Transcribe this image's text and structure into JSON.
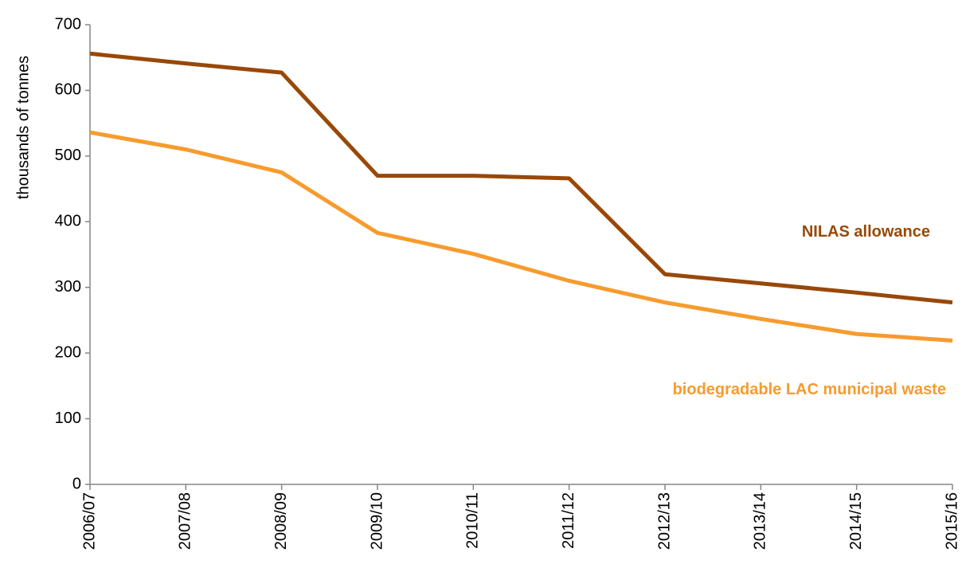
{
  "chart_data": {
    "type": "line",
    "y_label": "thousands of tonnes",
    "categories": [
      "2006/07",
      "2007/08",
      "2008/09",
      "2009/10",
      "2010/11",
      "2011/12",
      "2012/13",
      "2013/14",
      "2014/15",
      "2015/16"
    ],
    "series": [
      {
        "name": "NILAS allowance",
        "color": "#984807",
        "values": [
          656,
          641,
          627,
          470,
          470,
          466,
          320,
          306,
          292,
          277
        ]
      },
      {
        "name": "biodegradable LAC municipal waste",
        "color": "#f79b2e",
        "values": [
          536,
          510,
          475,
          383,
          351,
          310,
          277,
          252,
          229,
          219
        ]
      }
    ],
    "ylim": [
      0,
      700
    ],
    "yticks": [
      0,
      100,
      200,
      300,
      400,
      500,
      600,
      700
    ],
    "grid": false
  }
}
